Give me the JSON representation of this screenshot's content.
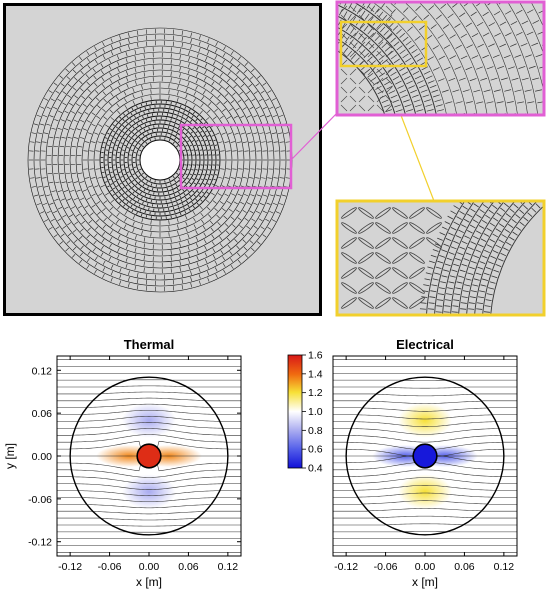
{
  "colors": {
    "panel_bg": "#d4d4d4",
    "pink_frame": "#e15fd4",
    "yellow_frame": "#f2d02c",
    "hot": "#f04020",
    "cold": "#1e30e0",
    "neutral": "#ffffff"
  },
  "top_panels": {
    "main": "cloak-cross-section",
    "zoom1": "magnified-boundary-region",
    "zoom2": "further-magnified-inner-region"
  },
  "colorbar": {
    "ticks": [
      "1.6",
      "1.4",
      "1.2",
      "1.0",
      "0.8",
      "0.6",
      "0.4"
    ],
    "min": 0.4,
    "max": 1.6
  },
  "chart_data": [
    {
      "type": "heatmap",
      "title": "Thermal",
      "xlabel": "x [m]",
      "ylabel": "y [m]",
      "xlim": [
        -0.14,
        0.14
      ],
      "ylim": [
        -0.14,
        0.14
      ],
      "xticks": [
        "-0.12",
        "-0.06",
        "0.00",
        "0.06",
        "0.12"
      ],
      "yticks": [
        "0.12",
        "0.06",
        "0.00",
        "-0.06",
        "-0.12"
      ],
      "outer_radius": 0.12,
      "inner_radius": 0.018,
      "core_value": 1.55,
      "lobes": [
        {
          "x": -0.03,
          "y": 0.0,
          "value": 1.35
        },
        {
          "x": 0.03,
          "y": 0.0,
          "value": 1.35
        },
        {
          "x": 0.0,
          "y": 0.05,
          "value": 0.8
        },
        {
          "x": 0.0,
          "y": -0.05,
          "value": 0.8
        }
      ],
      "background_value": 1.0
    },
    {
      "type": "heatmap",
      "title": "Electrical",
      "xlabel": "x [m]",
      "ylabel": "",
      "xlim": [
        -0.14,
        0.14
      ],
      "ylim": [
        -0.14,
        0.14
      ],
      "xticks": [
        "-0.12",
        "-0.06",
        "0.00",
        "0.06",
        "0.12"
      ],
      "yticks": [],
      "outer_radius": 0.12,
      "inner_radius": 0.018,
      "core_value": 0.42,
      "lobes": [
        {
          "x": -0.03,
          "y": 0.0,
          "value": 0.6
        },
        {
          "x": 0.03,
          "y": 0.0,
          "value": 0.6
        },
        {
          "x": 0.0,
          "y": 0.05,
          "value": 1.2
        },
        {
          "x": 0.0,
          "y": -0.05,
          "value": 1.2
        }
      ],
      "background_value": 1.0
    }
  ]
}
